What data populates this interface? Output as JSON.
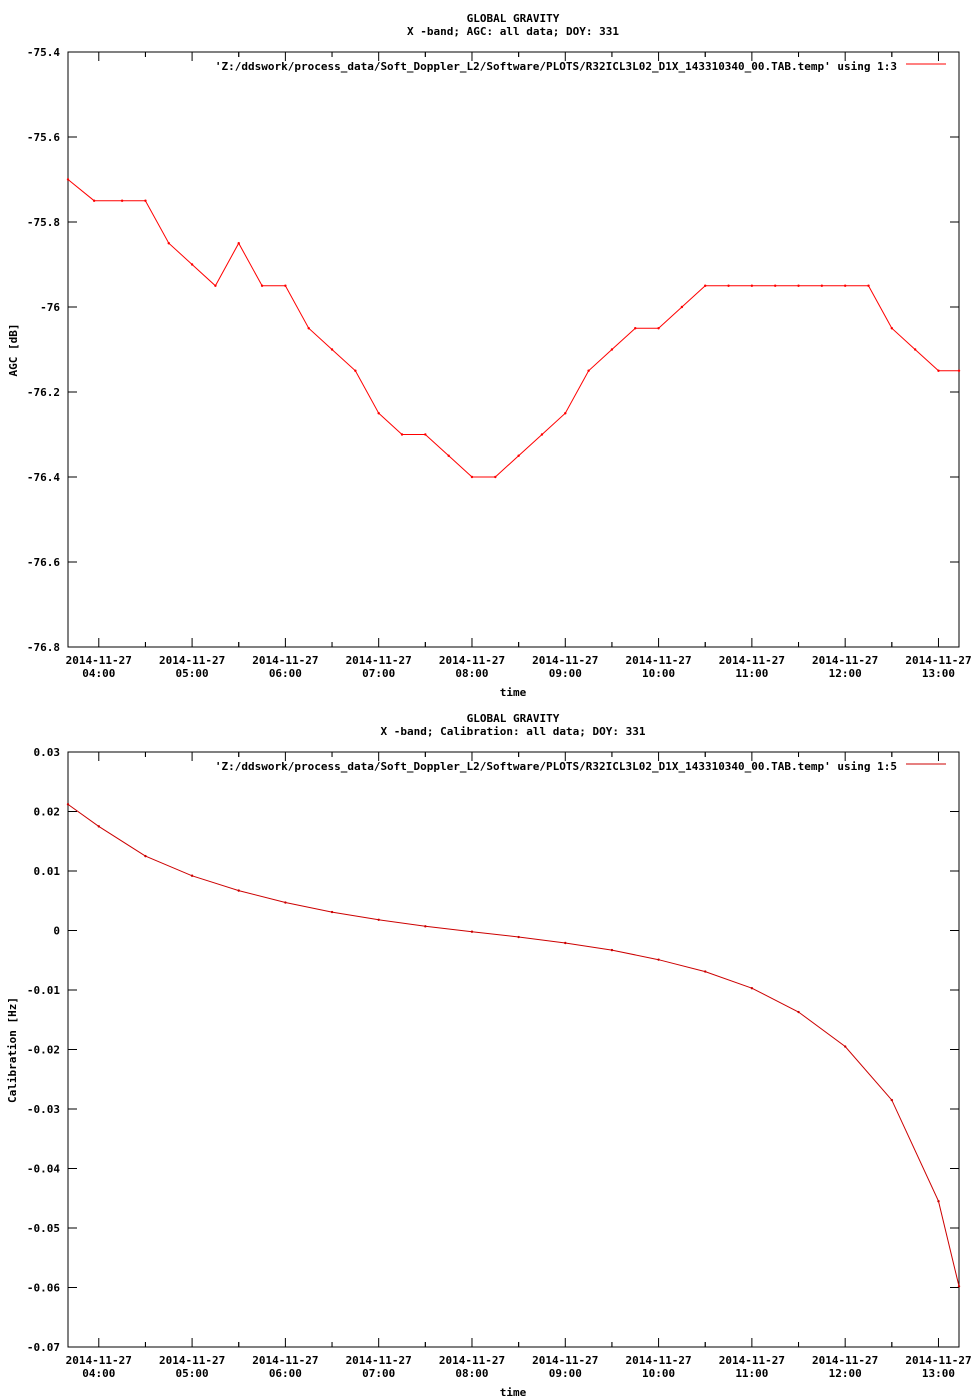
{
  "chart_data": [
    {
      "type": "line",
      "title": "GLOBAL GRAVITY",
      "subtitle": "X -band; AGC: all data; DOY: 331",
      "xlabel": "time",
      "ylabel": "AGC [dB]",
      "ylim": [
        -76.8,
        -75.4
      ],
      "xlim_hours": [
        3.67,
        13.22
      ],
      "yticks": [
        "-75.4",
        "-75.6",
        "-75.8",
        "-76",
        "-76.2",
        "-76.4",
        "-76.6",
        "-76.8"
      ],
      "ytick_values": [
        -75.4,
        -75.6,
        -75.8,
        -76,
        -76.2,
        -76.4,
        -76.6,
        -76.8
      ],
      "xtick_date": "2014-11-27",
      "xticks": [
        "04:00",
        "05:00",
        "06:00",
        "07:00",
        "08:00",
        "09:00",
        "10:00",
        "11:00",
        "12:00",
        "13:00"
      ],
      "xtick_hours": [
        4,
        5,
        6,
        7,
        8,
        9,
        10,
        11,
        12,
        13
      ],
      "grid": false,
      "legend_position": "top-right",
      "series": [
        {
          "name": "'Z:/ddswork/process_data/Soft_Doppler_L2/Software/PLOTS/R32ICL3L02_D1X_143310340_00.TAB.temp' using 1:3",
          "color": "#ff0000",
          "x_hours": [
            3.67,
            3.95,
            4.25,
            4.5,
            4.75,
            5.0,
            5.25,
            5.5,
            5.75,
            6.0,
            6.25,
            6.5,
            6.75,
            7.0,
            7.25,
            7.5,
            7.75,
            8.0,
            8.25,
            8.5,
            8.75,
            9.0,
            9.25,
            9.5,
            9.75,
            10.0,
            10.25,
            10.5,
            10.75,
            11.0,
            11.25,
            11.5,
            11.75,
            12.0,
            12.25,
            12.5,
            12.75,
            13.0,
            13.22
          ],
          "values": [
            -75.7,
            -75.75,
            -75.75,
            -75.75,
            -75.85,
            -75.9,
            -75.95,
            -75.85,
            -75.95,
            -75.95,
            -76.05,
            -76.1,
            -76.15,
            -76.25,
            -76.3,
            -76.3,
            -76.35,
            -76.4,
            -76.4,
            -76.35,
            -76.3,
            -76.25,
            -76.15,
            -76.1,
            -76.05,
            -76.05,
            -76.0,
            -75.95,
            -75.95,
            -75.95,
            -75.95,
            -75.95,
            -75.95,
            -75.95,
            -75.95,
            -76.05,
            -76.1,
            -76.15,
            -76.15
          ]
        }
      ]
    },
    {
      "type": "line",
      "title": "GLOBAL GRAVITY",
      "subtitle": "X -band; Calibration: all data; DOY: 331",
      "xlabel": "time",
      "ylabel": "Calibration [Hz]",
      "ylim": [
        -0.07,
        0.03
      ],
      "xlim_hours": [
        3.67,
        13.22
      ],
      "yticks": [
        "0.03",
        "0.02",
        "0.01",
        "0",
        "-0.01",
        "-0.02",
        "-0.03",
        "-0.04",
        "-0.05",
        "-0.06",
        "-0.07"
      ],
      "ytick_values": [
        0.03,
        0.02,
        0.01,
        0,
        -0.01,
        -0.02,
        -0.03,
        -0.04,
        -0.05,
        -0.06,
        -0.07
      ],
      "xtick_date": "2014-11-27",
      "xticks": [
        "04:00",
        "05:00",
        "06:00",
        "07:00",
        "08:00",
        "09:00",
        "10:00",
        "11:00",
        "12:00",
        "13:00"
      ],
      "xtick_hours": [
        4,
        5,
        6,
        7,
        8,
        9,
        10,
        11,
        12,
        13
      ],
      "grid": false,
      "legend_position": "top-right",
      "series": [
        {
          "name": "'Z:/ddswork/process_data/Soft_Doppler_L2/Software/PLOTS/R32ICL3L02_D1X_143310340_00.TAB.temp' using 1:5",
          "color": "#cc0000",
          "x_hours": [
            3.67,
            4.0,
            4.5,
            5.0,
            5.5,
            6.0,
            6.5,
            7.0,
            7.5,
            8.0,
            8.5,
            9.0,
            9.5,
            10.0,
            10.5,
            11.0,
            11.5,
            12.0,
            12.5,
            13.0,
            13.22
          ],
          "values": [
            0.0212,
            0.0175,
            0.0125,
            0.0092,
            0.0067,
            0.0047,
            0.0031,
            0.0018,
            0.0007,
            -0.0002,
            -0.0011,
            -0.0021,
            -0.0033,
            -0.0049,
            -0.0069,
            -0.0097,
            -0.0137,
            -0.0195,
            -0.0285,
            -0.0455,
            -0.0598
          ]
        }
      ]
    }
  ]
}
